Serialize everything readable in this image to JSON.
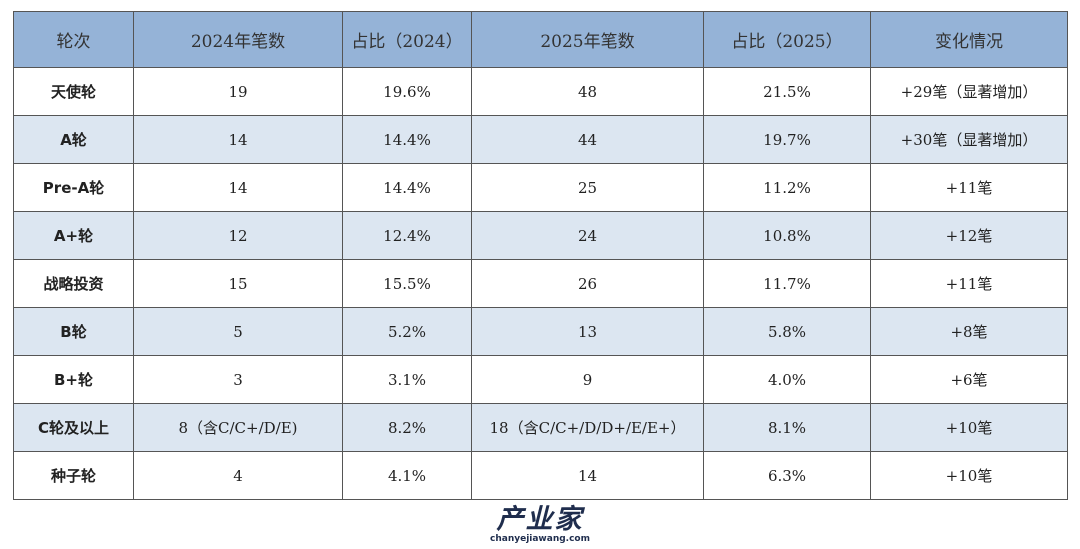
{
  "table": {
    "headers": [
      "轮次",
      "2024年笔数",
      "占比（2024）",
      "2025年笔数",
      "占比（2025）",
      "变化情况"
    ],
    "rows": [
      [
        "天使轮",
        "19",
        "19.6%",
        "48",
        "21.5%",
        "+29笔（显著增加）"
      ],
      [
        "A轮",
        "14",
        "14.4%",
        "44",
        "19.7%",
        "+30笔（显著增加）"
      ],
      [
        "Pre-A轮",
        "14",
        "14.4%",
        "25",
        "11.2%",
        "+11笔"
      ],
      [
        "A+轮",
        "12",
        "12.4%",
        "24",
        "10.8%",
        "+12笔"
      ],
      [
        "战略投资",
        "15",
        "15.5%",
        "26",
        "11.7%",
        "+11笔"
      ],
      [
        "B轮",
        "5",
        "5.2%",
        "13",
        "5.8%",
        "+8笔"
      ],
      [
        "B+轮",
        "3",
        "3.1%",
        "9",
        "4.0%",
        "+6笔"
      ],
      [
        "C轮及以上",
        "8（含C/C+/D/E)",
        "8.2%",
        "18（含C/C+/D/D+/E/E+）",
        "8.1%",
        "+10笔"
      ],
      [
        "种子轮",
        "4",
        "4.1%",
        "14",
        "6.3%",
        "+10笔"
      ]
    ]
  },
  "logo": {
    "cn": "产业家",
    "en": "chanyejiawang.com"
  },
  "colors": {
    "header": "#95b3d7",
    "alt_row": "#dce6f1"
  }
}
